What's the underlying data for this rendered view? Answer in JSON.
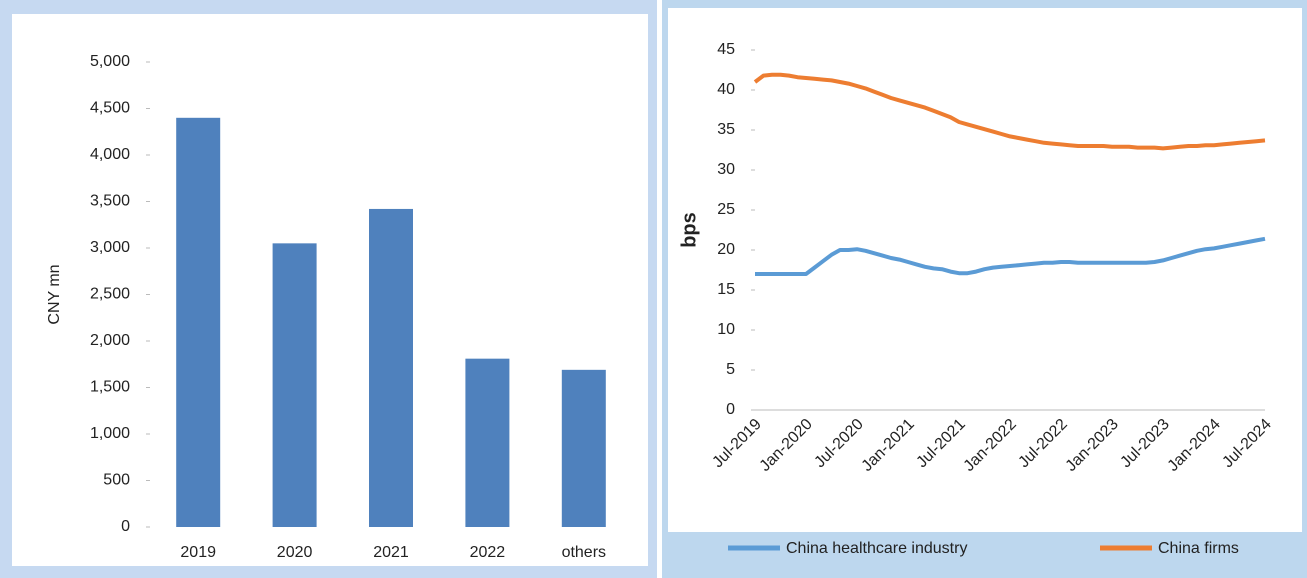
{
  "chart_data": [
    {
      "type": "bar",
      "y_label": "CNY mn",
      "color": "#4f81bd",
      "categories": [
        "2019",
        "2020",
        "2021",
        "2022",
        "others"
      ],
      "values": [
        4400,
        3050,
        3420,
        1810,
        1690
      ],
      "ylim": [
        0,
        5000
      ],
      "yticks": [
        0,
        500,
        {
          "value": 1000,
          "label": "1,000"
        },
        {
          "value": 1500,
          "label": "1,500"
        },
        {
          "value": 2000,
          "label": "2,000"
        },
        {
          "value": 2500,
          "label": "2,500"
        },
        {
          "value": 3000,
          "label": "3,000"
        },
        {
          "value": 3500,
          "label": "3,500"
        },
        {
          "value": 4000,
          "label": "4,000"
        },
        {
          "value": 4500,
          "label": "4,500"
        },
        {
          "value": 5000,
          "label": "5,000"
        }
      ]
    },
    {
      "type": "line",
      "y_label": "bps",
      "legend": "bottom",
      "categories": [
        "Jul-2019",
        null,
        null,
        null,
        null,
        null,
        "Jan-2020",
        null,
        null,
        null,
        null,
        null,
        "Jul-2020",
        null,
        null,
        null,
        null,
        null,
        "Jan-2021",
        null,
        null,
        null,
        null,
        null,
        "Jul-2021",
        null,
        null,
        null,
        null,
        null,
        "Jan-2022",
        null,
        null,
        null,
        null,
        null,
        "Jul-2022",
        null,
        null,
        null,
        null,
        null,
        "Jan-2023",
        null,
        null,
        null,
        null,
        null,
        "Jul-2023",
        null,
        null,
        null,
        null,
        null,
        "Jan-2024",
        null,
        null,
        null,
        null,
        null,
        "Jul-2024"
      ],
      "ylim": [
        0,
        45
      ],
      "yticks": [
        0,
        5,
        10,
        15,
        20,
        25,
        30,
        35,
        40,
        45
      ],
      "series": [
        {
          "name": "China healthcare industry",
          "color": "#5b9bd5",
          "values": [
            17.0,
            17.0,
            17.0,
            17.0,
            17.0,
            17.0,
            17.0,
            17.8,
            18.6,
            19.4,
            20.0,
            20.0,
            20.1,
            19.9,
            19.6,
            19.3,
            19.0,
            18.8,
            18.5,
            18.2,
            17.9,
            17.7,
            17.6,
            17.3,
            17.1,
            17.1,
            17.3,
            17.6,
            17.8,
            17.9,
            18.0,
            18.1,
            18.2,
            18.3,
            18.4,
            18.4,
            18.5,
            18.5,
            18.4,
            18.4,
            18.4,
            18.4,
            18.4,
            18.4,
            18.4,
            18.4,
            18.4,
            18.5,
            18.7,
            19.0,
            19.3,
            19.6,
            19.9,
            20.1,
            20.2,
            20.4,
            20.6,
            20.8,
            21.0,
            21.2,
            21.4
          ]
        },
        {
          "name": "China firms",
          "color": "#ed7d31",
          "values": [
            41.0,
            41.8,
            41.9,
            41.9,
            41.8,
            41.6,
            41.5,
            41.4,
            41.3,
            41.2,
            41.0,
            40.8,
            40.5,
            40.2,
            39.8,
            39.4,
            39.0,
            38.7,
            38.4,
            38.1,
            37.8,
            37.4,
            37.0,
            36.6,
            36.0,
            35.7,
            35.4,
            35.1,
            34.8,
            34.5,
            34.2,
            34.0,
            33.8,
            33.6,
            33.4,
            33.3,
            33.2,
            33.1,
            33.0,
            33.0,
            33.0,
            33.0,
            32.9,
            32.9,
            32.9,
            32.8,
            32.8,
            32.8,
            32.7,
            32.8,
            32.9,
            33.0,
            33.0,
            33.1,
            33.1,
            33.2,
            33.3,
            33.4,
            33.5,
            33.6,
            33.7
          ]
        }
      ]
    }
  ]
}
